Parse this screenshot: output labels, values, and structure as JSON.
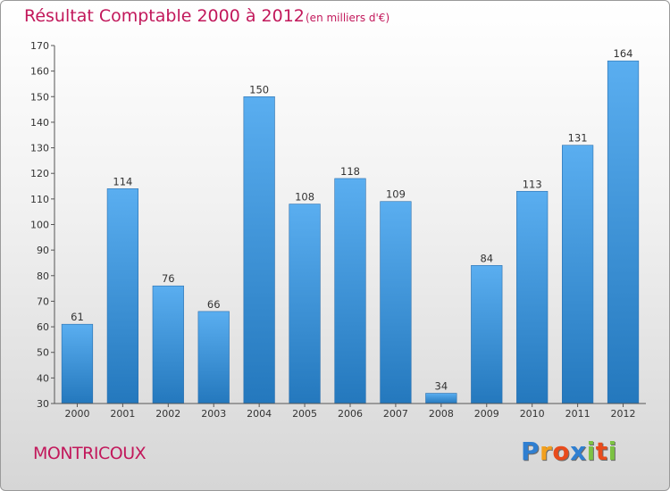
{
  "chart_data": {
    "type": "bar",
    "title": "Résultat Comptable 2000 à 2012",
    "subtitle": "(en milliers d'€)",
    "categories": [
      "2000",
      "2001",
      "2002",
      "2003",
      "2004",
      "2005",
      "2006",
      "2007",
      "2008",
      "2009",
      "2010",
      "2011",
      "2012"
    ],
    "values": [
      61,
      114,
      76,
      66,
      150,
      108,
      118,
      109,
      34,
      84,
      113,
      131,
      164
    ],
    "ylim": [
      30,
      170
    ],
    "yticks": [
      30,
      40,
      50,
      60,
      70,
      80,
      90,
      100,
      110,
      120,
      130,
      140,
      150,
      160,
      170
    ],
    "xlabel": "",
    "ylabel": "",
    "grid": false,
    "bar_color": "#3d8fd6",
    "bar_color_light": "#5aaef0",
    "bar_color_dark": "#2478bd"
  },
  "place_name": "MONTRICOUX",
  "logo": {
    "letters": [
      "P",
      "r",
      "o",
      "x",
      "i",
      "t",
      "i"
    ],
    "colors": [
      "#2f7fd1",
      "#f2a01e",
      "#e84b1c",
      "#2f7fd1",
      "#7cc242",
      "#e84b1c",
      "#7cc242"
    ]
  }
}
